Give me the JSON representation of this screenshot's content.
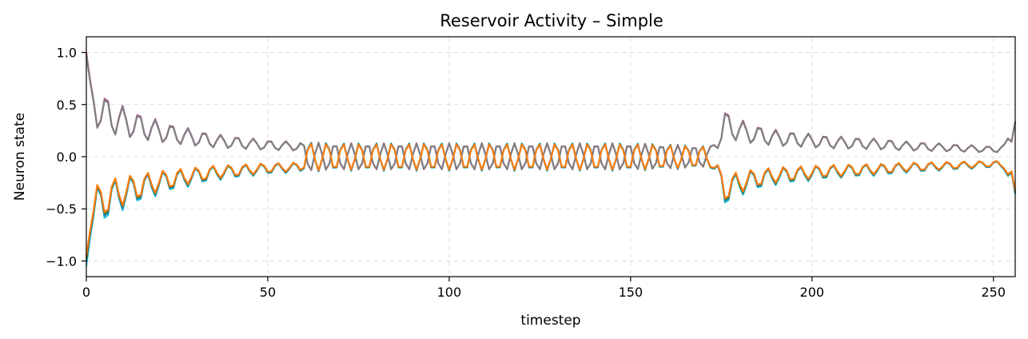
{
  "chart_data": {
    "type": "line",
    "title": "Reservoir Activity – Simple",
    "xlabel": "timestep",
    "ylabel": "Neuron state",
    "xlim": [
      0,
      256
    ],
    "ylim": [
      -1.15,
      1.15
    ],
    "xticks": [
      0,
      50,
      100,
      150,
      200,
      250
    ],
    "xtick_labels": [
      "0",
      "50",
      "100",
      "150",
      "200",
      "250"
    ],
    "yticks": [
      -1.0,
      -0.5,
      0.0,
      0.5,
      1.0
    ],
    "ytick_labels": [
      "−1.0",
      "−0.5",
      "0.0",
      "0.5",
      "1.0"
    ],
    "grid": true,
    "legend": "none",
    "n_timesteps": 257,
    "series": [
      {
        "color": "#e377c2",
        "sign": 1,
        "scale": 1.0
      },
      {
        "color": "#8c564b",
        "sign": 1,
        "scale": 0.99
      },
      {
        "color": "#9467bd",
        "sign": 1,
        "scale": 0.98
      },
      {
        "color": "#7f7f7f",
        "sign": 1,
        "scale": 0.97
      },
      {
        "color": "#17becf",
        "sign": -1,
        "scale": 1.05
      },
      {
        "color": "#1f77b4",
        "sign": -1,
        "scale": 1.01
      },
      {
        "color": "#2ca02c",
        "sign": -1,
        "scale": 0.98
      },
      {
        "color": "#d62728",
        "sign": -1,
        "scale": 0.96
      },
      {
        "color": "#ff7f0e",
        "sign": -1,
        "scale": 0.95
      }
    ],
    "envelope_keypoints": {
      "t": [
        0,
        2,
        5,
        8,
        12,
        16,
        20,
        25,
        30,
        35,
        40,
        45,
        50,
        55,
        60,
        70,
        80,
        90,
        100,
        110,
        120,
        130,
        140,
        150,
        160,
        172,
        174,
        176,
        180,
        185,
        190,
        195,
        200,
        205,
        210,
        215,
        220,
        225,
        230,
        235,
        240,
        245,
        250,
        253,
        255,
        256
      ],
      "amp": [
        1.0,
        0.72,
        0.6,
        0.52,
        0.46,
        0.4,
        0.35,
        0.3,
        0.26,
        0.22,
        0.2,
        0.18,
        0.16,
        0.15,
        0.14,
        0.13,
        0.13,
        0.13,
        0.13,
        0.13,
        0.13,
        0.13,
        0.13,
        0.13,
        0.12,
        0.1,
        0.2,
        0.45,
        0.36,
        0.3,
        0.26,
        0.24,
        0.22,
        0.2,
        0.19,
        0.18,
        0.17,
        0.15,
        0.14,
        0.13,
        0.12,
        0.11,
        0.1,
        0.12,
        0.35,
        0.62
      ]
    }
  }
}
